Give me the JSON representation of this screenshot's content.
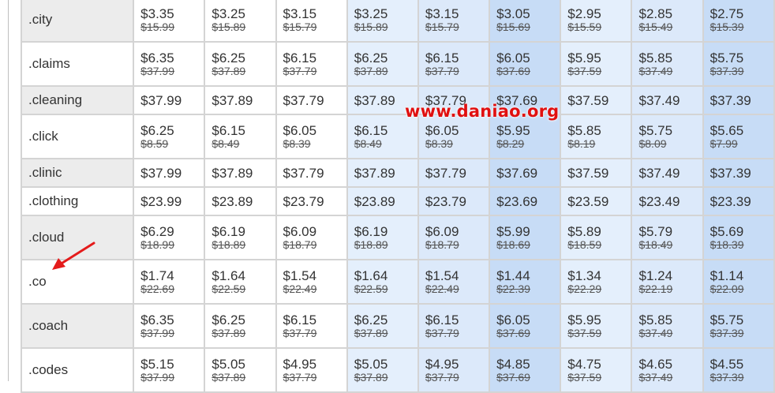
{
  "watermark": "www.daniao.org",
  "annotation_color": "#e41b1b",
  "rows": [
    {
      "tld": ".city",
      "prices": [
        "$3.35",
        "$3.25",
        "$3.15",
        "$3.25",
        "$3.15",
        "$3.05",
        "$2.95",
        "$2.85",
        "$2.75"
      ],
      "old": [
        "$15.99",
        "$15.89",
        "$15.79",
        "$15.89",
        "$15.79",
        "$15.69",
        "$15.59",
        "$15.49",
        "$15.39"
      ]
    },
    {
      "tld": ".claims",
      "prices": [
        "$6.35",
        "$6.25",
        "$6.15",
        "$6.25",
        "$6.15",
        "$6.05",
        "$5.95",
        "$5.85",
        "$5.75"
      ],
      "old": [
        "$37.99",
        "$37.89",
        "$37.79",
        "$37.89",
        "$37.79",
        "$37.69",
        "$37.59",
        "$37.49",
        "$37.39"
      ]
    },
    {
      "tld": ".cleaning",
      "prices": [
        "$37.99",
        "$37.89",
        "$37.79",
        "$37.89",
        "$37.79",
        "$37.69",
        "$37.59",
        "$37.49",
        "$37.39"
      ],
      "old": []
    },
    {
      "tld": ".click",
      "prices": [
        "$6.25",
        "$6.15",
        "$6.05",
        "$6.15",
        "$6.05",
        "$5.95",
        "$5.85",
        "$5.75",
        "$5.65"
      ],
      "old": [
        "$8.59",
        "$8.49",
        "$8.39",
        "$8.49",
        "$8.39",
        "$8.29",
        "$8.19",
        "$8.09",
        "$7.99"
      ]
    },
    {
      "tld": ".clinic",
      "prices": [
        "$37.99",
        "$37.89",
        "$37.79",
        "$37.89",
        "$37.79",
        "$37.69",
        "$37.59",
        "$37.49",
        "$37.39"
      ],
      "old": []
    },
    {
      "tld": ".clothing",
      "prices": [
        "$23.99",
        "$23.89",
        "$23.79",
        "$23.89",
        "$23.79",
        "$23.69",
        "$23.59",
        "$23.49",
        "$23.39"
      ],
      "old": []
    },
    {
      "tld": ".cloud",
      "prices": [
        "$6.29",
        "$6.19",
        "$6.09",
        "$6.19",
        "$6.09",
        "$5.99",
        "$5.89",
        "$5.79",
        "$5.69"
      ],
      "old": [
        "$18.99",
        "$18.89",
        "$18.79",
        "$18.89",
        "$18.79",
        "$18.69",
        "$18.59",
        "$18.49",
        "$18.39"
      ]
    },
    {
      "tld": ".co",
      "prices": [
        "$1.74",
        "$1.64",
        "$1.54",
        "$1.64",
        "$1.54",
        "$1.44",
        "$1.34",
        "$1.24",
        "$1.14"
      ],
      "old": [
        "$22.69",
        "$22.59",
        "$22.49",
        "$22.59",
        "$22.49",
        "$22.39",
        "$22.29",
        "$22.19",
        "$22.09"
      ]
    },
    {
      "tld": ".coach",
      "prices": [
        "$6.35",
        "$6.25",
        "$6.15",
        "$6.25",
        "$6.15",
        "$6.05",
        "$5.95",
        "$5.85",
        "$5.75"
      ],
      "old": [
        "$37.99",
        "$37.89",
        "$37.79",
        "$37.89",
        "$37.79",
        "$37.69",
        "$37.59",
        "$37.49",
        "$37.39"
      ]
    },
    {
      "tld": ".codes",
      "prices": [
        "$5.15",
        "$5.05",
        "$4.95",
        "$5.05",
        "$4.95",
        "$4.85",
        "$4.75",
        "$4.65",
        "$4.55"
      ],
      "old": [
        "$37.99",
        "$37.89",
        "$37.79",
        "$37.89",
        "$37.79",
        "$37.69",
        "$37.59",
        "$37.49",
        "$37.39"
      ]
    }
  ]
}
